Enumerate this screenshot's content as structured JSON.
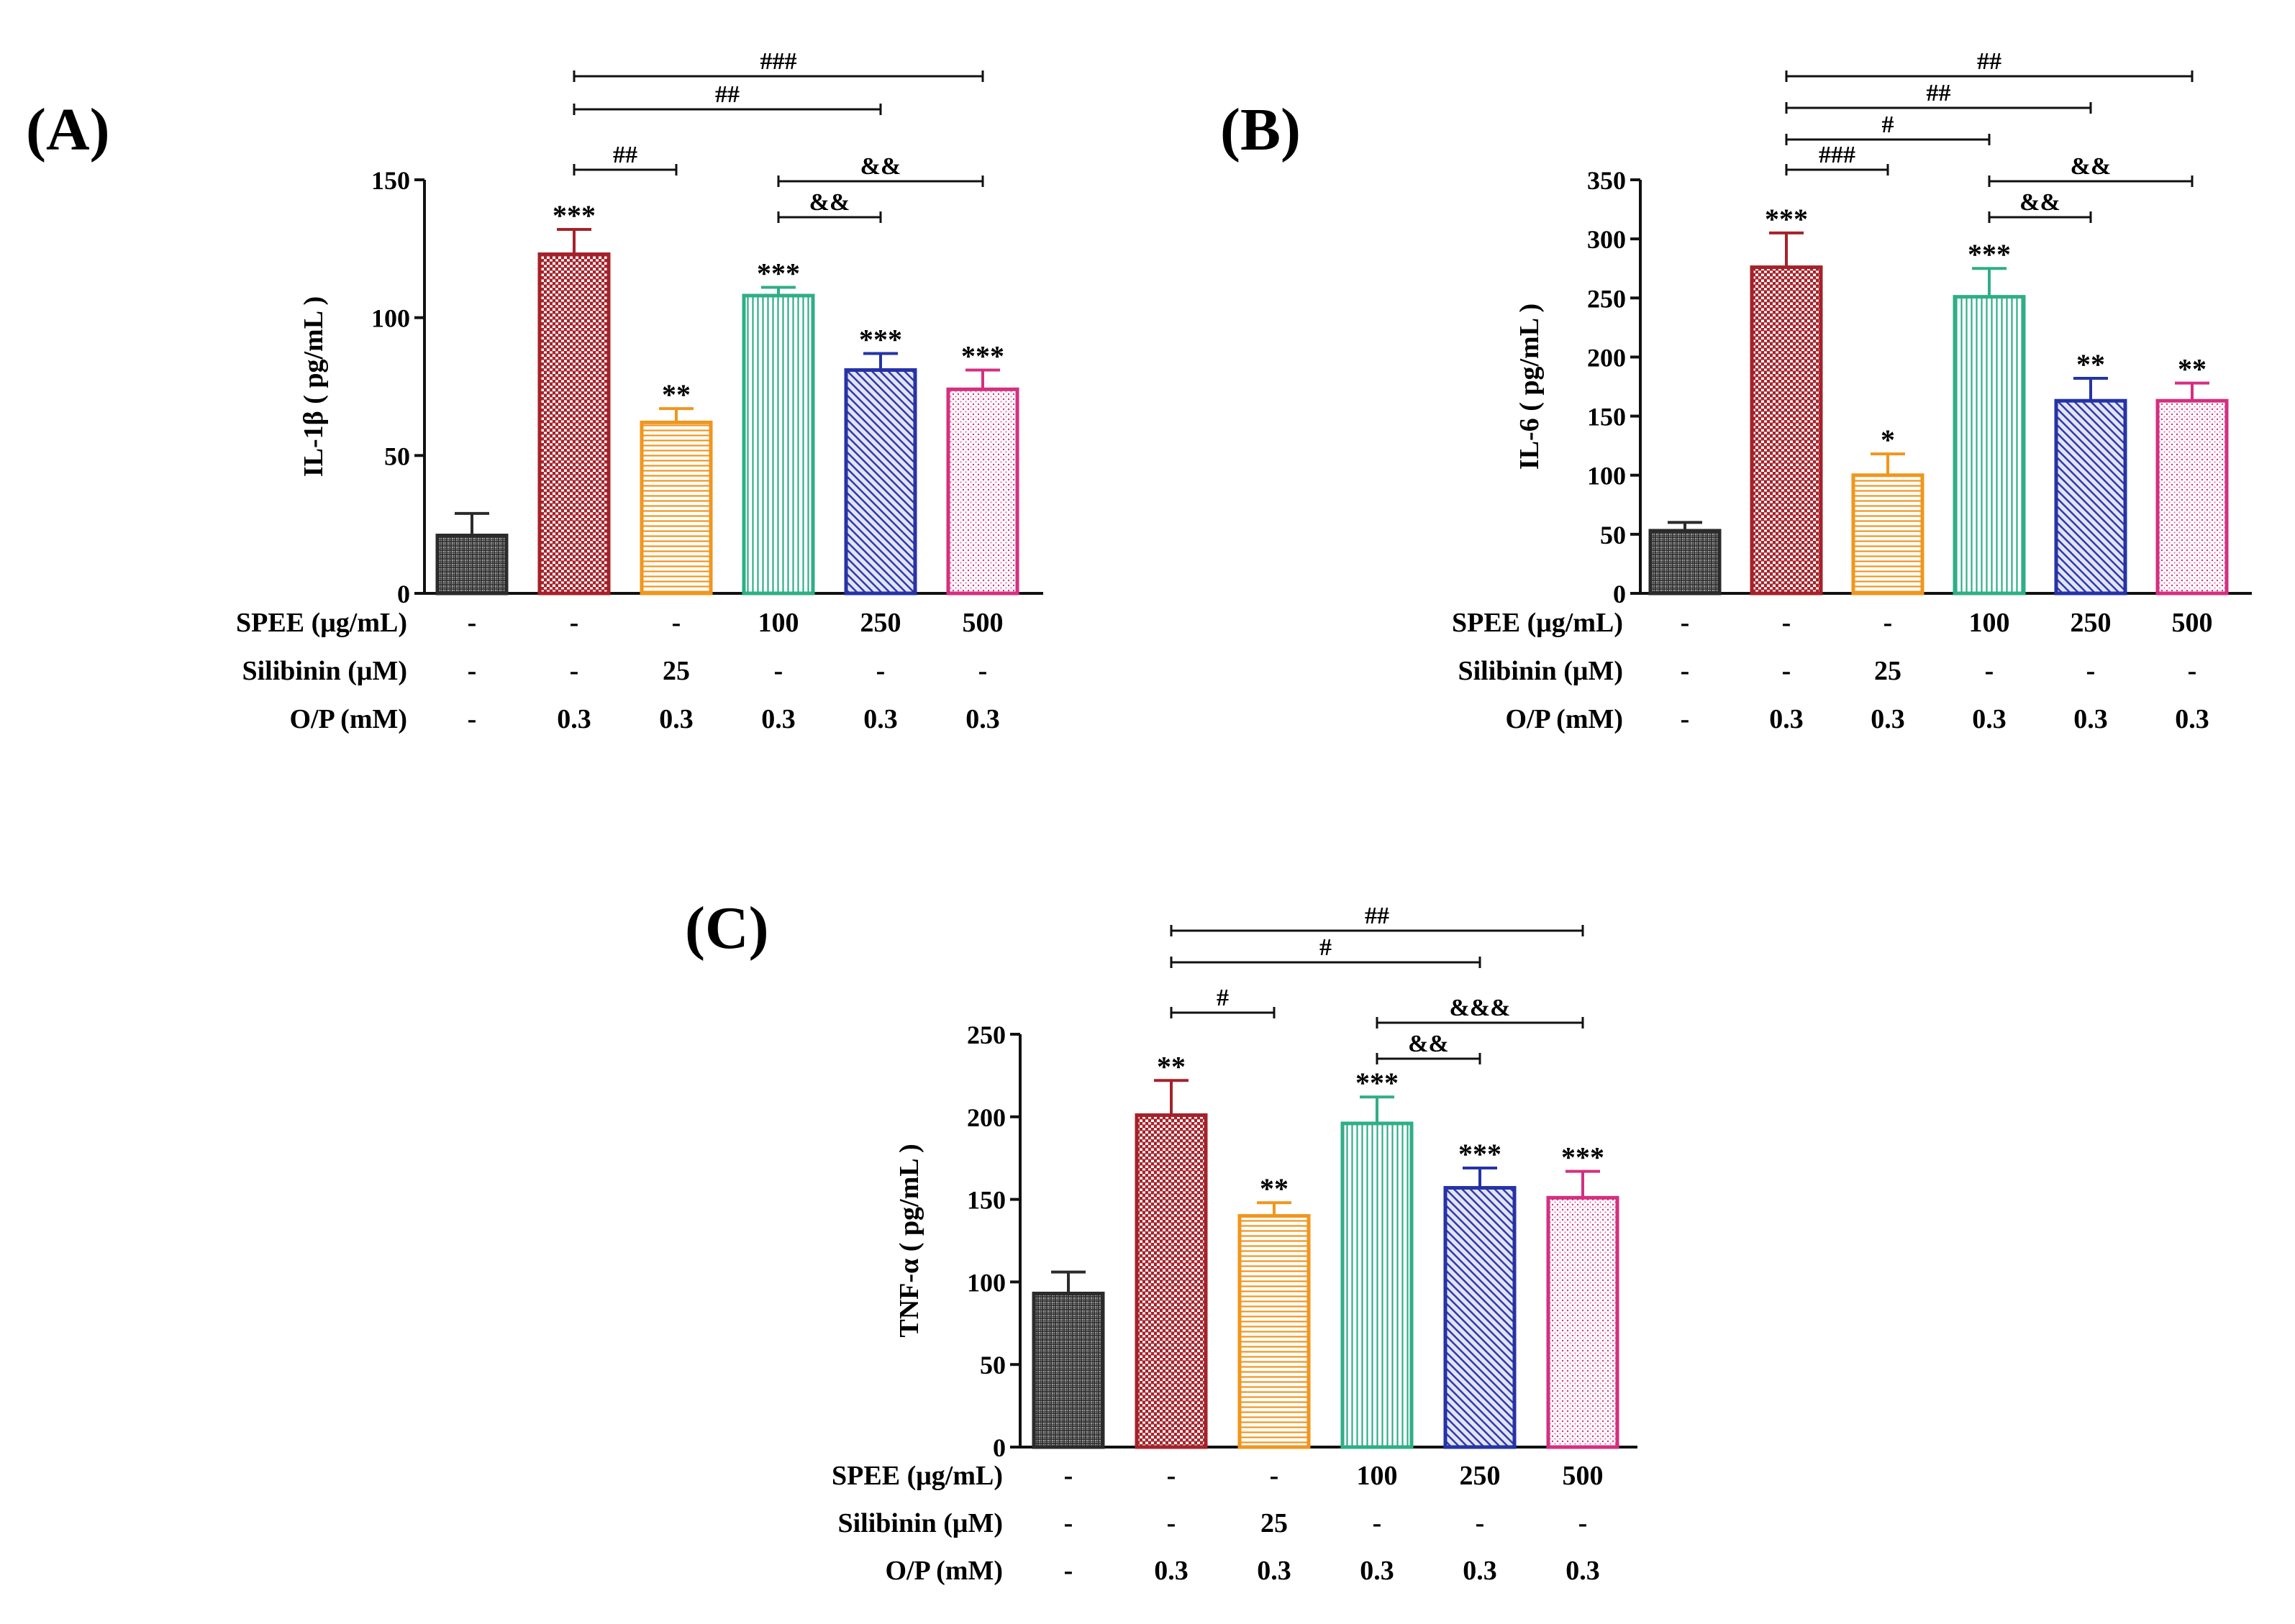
{
  "chart_data": [
    {
      "type": "bar",
      "panel": "(A)",
      "ylabel": "IL-1β ( pg/mL )",
      "ylim": [
        0,
        150
      ],
      "yticks": [
        0,
        50,
        100,
        150
      ],
      "values": [
        21,
        123,
        62,
        108,
        81,
        74
      ],
      "errors": [
        8,
        9,
        5,
        3,
        6,
        7
      ],
      "stars": [
        "",
        "***",
        "**",
        "***",
        "***",
        "***"
      ],
      "comparisons": [
        {
          "from": 1,
          "to": 5,
          "label": "###",
          "level": 4
        },
        {
          "from": 1,
          "to": 4,
          "label": "##",
          "level": 3
        },
        {
          "from": 1,
          "to": 2,
          "label": "##",
          "level": 1
        },
        {
          "from": 3,
          "to": 5,
          "label": "&&",
          "level": 2
        },
        {
          "from": 3,
          "to": 4,
          "label": "&&",
          "level": 1
        }
      ],
      "conditions": [
        {
          "label": "SPEE (μg/mL)",
          "values": [
            "-",
            "-",
            "-",
            "100",
            "250",
            "500"
          ]
        },
        {
          "label": "Silibinin (μM)",
          "values": [
            "-",
            "-",
            "25",
            "-",
            "-",
            "-"
          ]
        },
        {
          "label": "O/P (mM)",
          "values": [
            "-",
            "0.3",
            "0.3",
            "0.3",
            "0.3",
            "0.3"
          ]
        }
      ]
    },
    {
      "type": "bar",
      "panel": "(B)",
      "ylabel": "IL-6 ( pg/mL )",
      "ylim": [
        0,
        350
      ],
      "yticks": [
        0,
        50,
        100,
        150,
        200,
        250,
        300,
        350
      ],
      "values": [
        53,
        276,
        100,
        251,
        163,
        163
      ],
      "errors": [
        7,
        29,
        18,
        24,
        19,
        15
      ],
      "stars": [
        "",
        "***",
        "*",
        "***",
        "**",
        "**"
      ],
      "comparisons": [
        {
          "from": 1,
          "to": 5,
          "label": "##",
          "level": 5
        },
        {
          "from": 1,
          "to": 4,
          "label": "##",
          "level": 4
        },
        {
          "from": 1,
          "to": 3,
          "label": "#",
          "level": 3
        },
        {
          "from": 1,
          "to": 2,
          "label": "###",
          "level": 2
        },
        {
          "from": 3,
          "to": 5,
          "label": "&&",
          "level": 2
        },
        {
          "from": 3,
          "to": 4,
          "label": "&&",
          "level": 1
        }
      ],
      "conditions": [
        {
          "label": "SPEE (μg/mL)",
          "values": [
            "-",
            "-",
            "-",
            "100",
            "250",
            "500"
          ]
        },
        {
          "label": "Silibinin (μM)",
          "values": [
            "-",
            "-",
            "25",
            "-",
            "-",
            "-"
          ]
        },
        {
          "label": "O/P (mM)",
          "values": [
            "-",
            "0.3",
            "0.3",
            "0.3",
            "0.3",
            "0.3"
          ]
        }
      ]
    },
    {
      "type": "bar",
      "panel": "(C)",
      "ylabel": "TNF-α ( pg/mL )",
      "ylim": [
        0,
        250
      ],
      "yticks": [
        0,
        50,
        100,
        150,
        200,
        250
      ],
      "values": [
        93,
        201,
        140,
        196,
        157,
        151
      ],
      "errors": [
        13,
        21,
        8,
        16,
        12,
        16
      ],
      "stars": [
        "",
        "**",
        "**",
        "***",
        "***",
        "***"
      ],
      "comparisons": [
        {
          "from": 1,
          "to": 5,
          "label": "##",
          "level": 4
        },
        {
          "from": 1,
          "to": 4,
          "label": "#",
          "level": 3
        },
        {
          "from": 1,
          "to": 2,
          "label": "#",
          "level": 1
        },
        {
          "from": 3,
          "to": 5,
          "label": "&&&",
          "level": 2
        },
        {
          "from": 3,
          "to": 4,
          "label": "&&",
          "level": 1
        }
      ],
      "conditions": [
        {
          "label": "SPEE (μg/mL)",
          "values": [
            "-",
            "-",
            "-",
            "100",
            "250",
            "500"
          ]
        },
        {
          "label": "Silibinin (μM)",
          "values": [
            "-",
            "-",
            "25",
            "-",
            "-",
            "-"
          ]
        },
        {
          "label": "O/P (mM)",
          "values": [
            "-",
            "0.3",
            "0.3",
            "0.3",
            "0.3",
            "0.3"
          ]
        }
      ]
    }
  ],
  "bar_colors": [
    "#2b2b2b",
    "#a5222a",
    "#f0961e",
    "#2fae86",
    "#2633a6",
    "#d42f80"
  ],
  "bar_patterns": [
    "dense-grid",
    "checker",
    "horizontal-lines",
    "vertical-lines",
    "diagonal-lines",
    "dots"
  ]
}
